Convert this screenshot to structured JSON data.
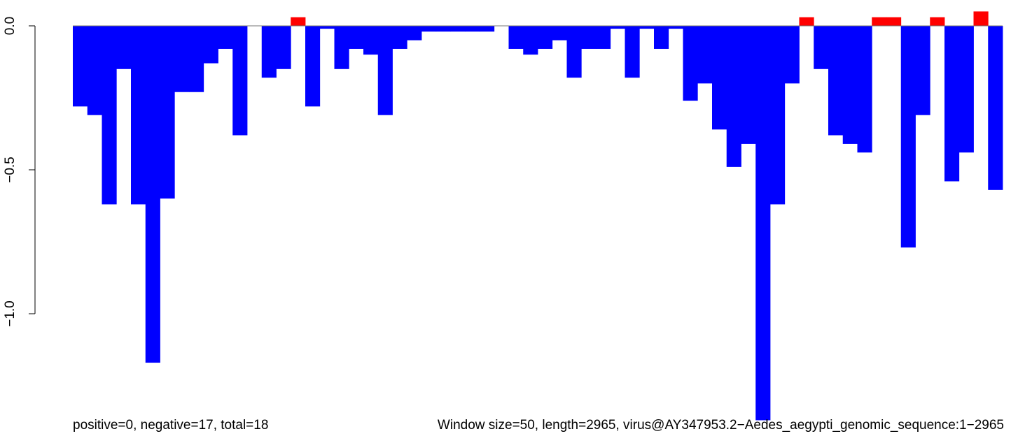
{
  "chart_data": {
    "type": "bar",
    "title": "",
    "xlabel": "",
    "ylabel": "",
    "ylim": [
      -1.37,
      0.06
    ],
    "y_ticks": [
      {
        "value": 0,
        "label": "0.0"
      },
      {
        "value": -0.5,
        "label": "−0.5"
      },
      {
        "value": -1,
        "label": "−1.0"
      }
    ],
    "x_axis_drawn": false,
    "grid": false,
    "colors": {
      "negative": "#0000ff",
      "positive": "#ff0000",
      "baseline": "#000000"
    },
    "values": [
      -0.28,
      -0.31,
      -0.62,
      -0.15,
      -0.62,
      -1.17,
      -0.6,
      -0.23,
      -0.23,
      -0.13,
      -0.08,
      -0.38,
      0,
      -0.18,
      -0.15,
      0.03,
      -0.28,
      -0.01,
      -0.15,
      -0.08,
      -0.1,
      -0.31,
      -0.08,
      -0.05,
      -0.02,
      -0.02,
      -0.02,
      -0.02,
      -0.02,
      0,
      -0.08,
      -0.1,
      -0.08,
      -0.05,
      -0.18,
      -0.08,
      -0.08,
      -0.01,
      -0.18,
      -0.01,
      -0.08,
      -0.01,
      -0.26,
      -0.2,
      -0.36,
      -0.49,
      -0.41,
      -1.37,
      -0.62,
      -0.2,
      0.03,
      -0.15,
      -0.38,
      -0.41,
      -0.44,
      0.03,
      0.03,
      -0.77,
      -0.31,
      0.03,
      -0.54,
      -0.44,
      0.05,
      -0.57
    ]
  },
  "footer": {
    "left": "positive=0, negative=17, total=18",
    "right": "Window size=50, length=2965, virus@AY347953.2−Aedes_aegypti_genomic_sequence:1−2965"
  }
}
